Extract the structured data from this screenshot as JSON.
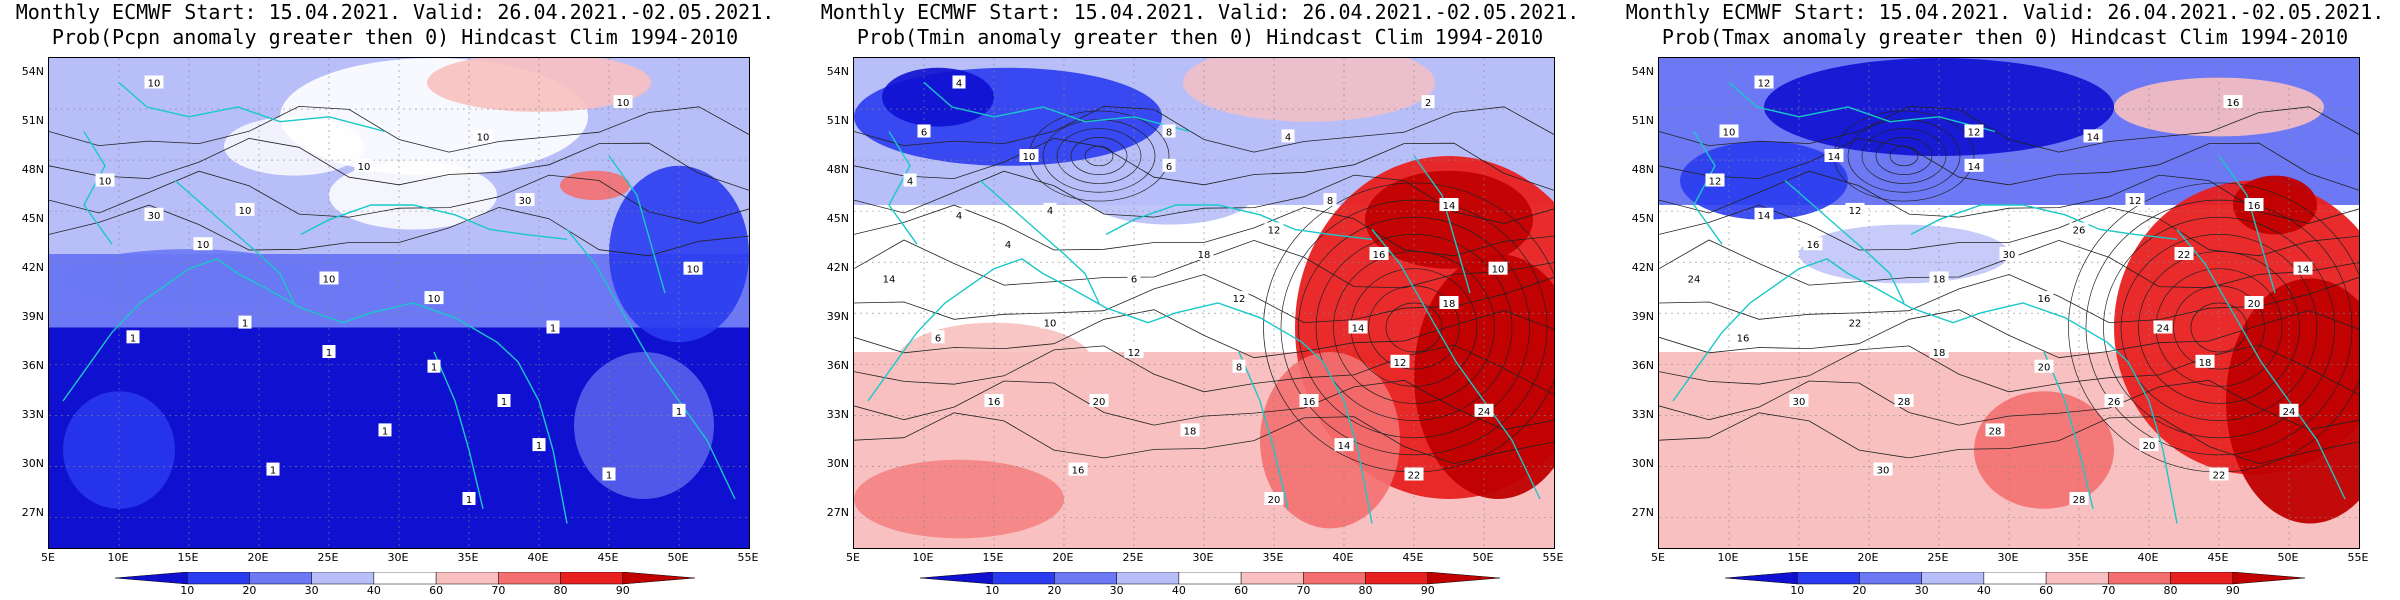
{
  "panels": [
    {
      "id": "pcpn",
      "title_line1": "Monthly ECMWF Start: 15.04.2021. Valid: 26.04.2021.-02.05.2021.",
      "title_line2": "Prob(Pcpn anomaly greater then 0) Hindcast Clim 1994-2010",
      "contour_labels": [
        "10",
        "10",
        "30",
        "10",
        "10",
        "10",
        "10",
        "10",
        "30",
        "10",
        "10",
        "10",
        "1",
        "1",
        "1",
        "1",
        "1",
        "1",
        "1",
        "1",
        "1",
        "1",
        "1",
        "1"
      ],
      "dominant_color": "#2230e8"
    },
    {
      "id": "tmin",
      "title_line1": "Monthly ECMWF Start: 15.04.2021. Valid: 26.04.2021.-02.05.2021.",
      "title_line2": "Prob(Tmin anomaly greater then 0) Hindcast Clim 1994-2010",
      "contour_labels": [
        "4",
        "4",
        "4",
        "4",
        "4",
        "6",
        "4",
        "2",
        "8",
        "6",
        "12",
        "10",
        "6",
        "10",
        "12",
        "8",
        "14",
        "16",
        "18",
        "16",
        "14",
        "20",
        "22",
        "24",
        "16",
        "12",
        "18",
        "14",
        "20",
        "18",
        "12",
        "16",
        "14",
        "10",
        "8",
        "6"
      ],
      "dominant_color": "#e82020"
    },
    {
      "id": "tmax",
      "title_line1": "Monthly ECMWF Start: 15.04.2021. Valid: 26.04.2021.-02.05.2021.",
      "title_line2": "Prob(Tmax anomaly greater then 0) Hindcast Clim 1994-2010",
      "contour_labels": [
        "12",
        "12",
        "14",
        "16",
        "12",
        "14",
        "14",
        "16",
        "12",
        "18",
        "16",
        "14",
        "16",
        "22",
        "18",
        "20",
        "24",
        "26",
        "28",
        "30",
        "20",
        "28",
        "22",
        "24",
        "30",
        "18",
        "20",
        "24",
        "28",
        "30",
        "26",
        "22",
        "16",
        "14",
        "12",
        "10"
      ],
      "dominant_color": "#e82020"
    }
  ],
  "lat_labels": [
    "54N",
    "51N",
    "48N",
    "45N",
    "42N",
    "39N",
    "36N",
    "33N",
    "30N",
    "27N"
  ],
  "lon_labels": [
    "5E",
    "10E",
    "15E",
    "20E",
    "25E",
    "30E",
    "35E",
    "40E",
    "45E",
    "50E",
    "55E"
  ],
  "colorbar_labels": [
    "10",
    "20",
    "30",
    "40",
    "60",
    "70",
    "80",
    "90"
  ],
  "colorbar_colors": [
    "#1010d0",
    "#2a3cf0",
    "#6c78f4",
    "#b8bef8",
    "#ffffff",
    "#f8c0c0",
    "#f47070",
    "#e82020",
    "#c00000"
  ]
}
